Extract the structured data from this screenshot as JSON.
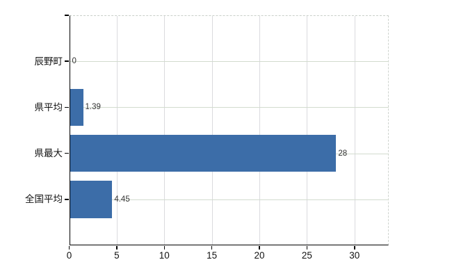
{
  "canvas": {
    "background": "#ffffff"
  },
  "chart_data": {
    "type": "bar",
    "orientation": "horizontal",
    "title": "",
    "xlabel": "",
    "ylabel": "",
    "categories": [
      "辰野町",
      "県平均",
      "県最大",
      "全国平均"
    ],
    "values": [
      0,
      1.39,
      28,
      4.45
    ],
    "value_labels": [
      "0",
      "1.39",
      "28",
      "4.45"
    ],
    "xticks": [
      0,
      5,
      10,
      15,
      20,
      25,
      30
    ],
    "xtick_labels": [
      "0",
      "5",
      "10",
      "15",
      "20",
      "25",
      "30"
    ],
    "xlim": [
      0,
      33.6
    ],
    "grid": true,
    "legend": false,
    "colors": {
      "bar": "#3c6da8",
      "axis": "#000000",
      "gridline_horizontal": "#d2dbce",
      "gridline_vertical": "#dadade",
      "border_dashed": "#c9cfc9",
      "category_label": "#111111",
      "tick_label": "#111111",
      "value_label": "#333333",
      "background": "#ffffff"
    }
  }
}
